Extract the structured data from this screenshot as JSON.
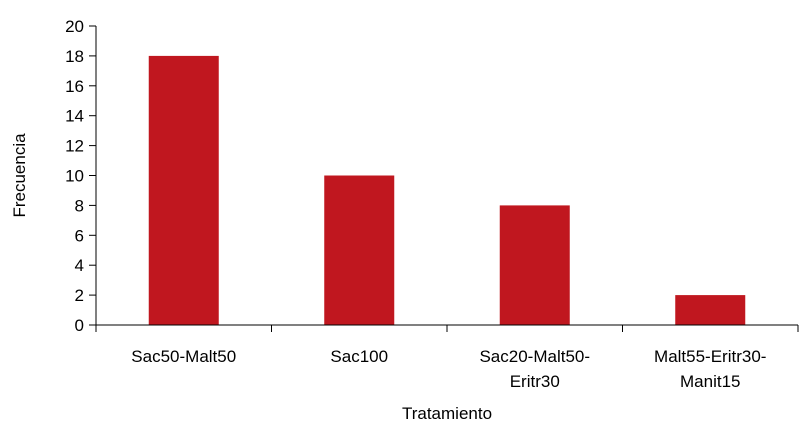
{
  "chart_data": {
    "type": "bar",
    "title": "",
    "xlabel": "Tratamiento",
    "ylabel": "Frecuencia",
    "ylim": [
      0,
      20
    ],
    "yticks": [
      0,
      2,
      4,
      6,
      8,
      10,
      12,
      14,
      16,
      18,
      20
    ],
    "grid": false,
    "legend": "none",
    "bar_color": "#c0171f",
    "categories": [
      [
        "Sac50-Malt50"
      ],
      [
        "Sac100"
      ],
      [
        "Sac20-Malt50-",
        "Eritr30"
      ],
      [
        "Malt55-Eritr30-",
        "Manit15"
      ]
    ],
    "values": [
      18,
      10,
      8,
      2
    ]
  }
}
